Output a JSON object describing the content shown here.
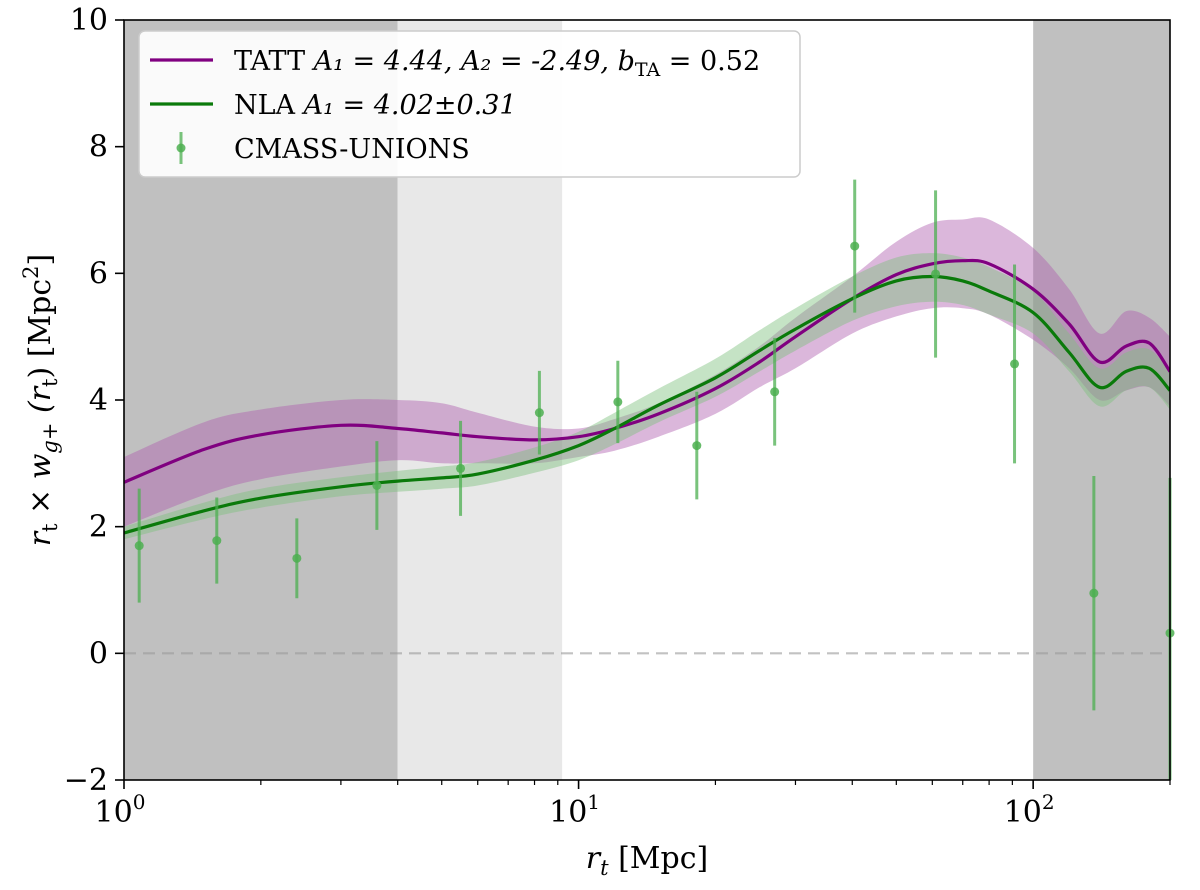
{
  "chart_data": {
    "type": "line",
    "xscale": "log",
    "xlim": [
      1,
      200
    ],
    "ylim": [
      -2,
      10
    ],
    "xlabel": {
      "sym": "r",
      "sub": "t",
      "rest": " [Mpc]"
    },
    "ylabel": {
      "a": "r",
      "a_sub": "t",
      "times": " × ",
      "b": "w",
      "b_sub": "g+",
      "arg_open": " (r",
      "arg_sub": "t",
      "arg_close": ") [Mpc",
      "sup": "2",
      "close": "]"
    },
    "x_ticks": [
      {
        "value": 1,
        "base": "10",
        "exp": "0"
      },
      {
        "value": 10,
        "base": "10",
        "exp": "1"
      },
      {
        "value": 100,
        "base": "10",
        "exp": "2"
      }
    ],
    "y_ticks": [
      {
        "value": -2,
        "label": "−2"
      },
      {
        "value": 0,
        "label": "0"
      },
      {
        "value": 2,
        "label": "2"
      },
      {
        "value": 4,
        "label": "4"
      },
      {
        "value": 6,
        "label": "6"
      },
      {
        "value": 8,
        "label": "8"
      },
      {
        "value": 10,
        "label": "10"
      }
    ],
    "shaded_regions": [
      {
        "x0": 1,
        "x1": 4,
        "color": "#c0c0c0"
      },
      {
        "x0": 4,
        "x1": 9.2,
        "color": "#e8e8e8"
      },
      {
        "x0": 100,
        "x1": 200,
        "color": "#c0c0c0"
      }
    ],
    "zero_line": {
      "y": 0,
      "color": "#999999",
      "style": "dashed"
    },
    "series": [
      {
        "name": "TATT",
        "color": "#800080",
        "band_color": "#b060b0",
        "x": [
          1,
          1.5,
          2,
          3,
          4,
          5,
          6,
          8,
          10,
          12,
          15,
          20,
          25,
          30,
          40,
          50,
          60,
          70,
          80,
          100,
          120,
          140,
          160,
          180,
          200
        ],
        "y": [
          2.7,
          3.22,
          3.45,
          3.6,
          3.55,
          3.48,
          3.42,
          3.37,
          3.42,
          3.55,
          3.78,
          4.18,
          4.6,
          5.0,
          5.6,
          5.98,
          6.15,
          6.2,
          6.15,
          5.75,
          5.2,
          4.6,
          4.85,
          4.9,
          4.45
        ],
        "lower": [
          2.0,
          2.5,
          2.75,
          2.95,
          3.05,
          3.0,
          3.0,
          3.0,
          3.1,
          3.2,
          3.42,
          3.78,
          4.2,
          4.5,
          5.05,
          5.32,
          5.45,
          5.45,
          5.35,
          4.95,
          4.5,
          4.0,
          4.15,
          4.2,
          3.9
        ],
        "upper": [
          3.1,
          3.65,
          3.85,
          4.0,
          4.0,
          3.95,
          3.8,
          3.58,
          3.55,
          3.7,
          3.95,
          4.4,
          4.85,
          5.3,
          5.95,
          6.5,
          6.8,
          6.85,
          6.85,
          6.4,
          5.75,
          5.05,
          5.4,
          5.3,
          5.0
        ]
      },
      {
        "name": "NLA",
        "color": "#0a7a0a",
        "band_color": "#7fc07f",
        "x": [
          1,
          1.5,
          2,
          3,
          4,
          5,
          6,
          8,
          10,
          12,
          15,
          20,
          25,
          30,
          40,
          50,
          60,
          70,
          80,
          100,
          120,
          140,
          160,
          180,
          200
        ],
        "y": [
          1.9,
          2.25,
          2.45,
          2.63,
          2.72,
          2.77,
          2.83,
          3.05,
          3.28,
          3.55,
          3.92,
          4.35,
          4.78,
          5.12,
          5.6,
          5.88,
          5.95,
          5.88,
          5.72,
          5.38,
          4.75,
          4.2,
          4.45,
          4.5,
          4.15
        ],
        "lower": [
          1.8,
          2.12,
          2.3,
          2.48,
          2.55,
          2.6,
          2.65,
          2.85,
          3.05,
          3.3,
          3.65,
          4.05,
          4.45,
          4.78,
          5.25,
          5.48,
          5.55,
          5.5,
          5.35,
          5.05,
          4.45,
          3.9,
          4.15,
          4.2,
          3.85
        ],
        "upper": [
          2.0,
          2.38,
          2.6,
          2.78,
          2.88,
          2.95,
          3.02,
          3.25,
          3.5,
          3.8,
          4.18,
          4.65,
          5.1,
          5.45,
          5.95,
          6.25,
          6.32,
          6.25,
          6.1,
          5.72,
          5.05,
          4.5,
          4.75,
          4.8,
          4.45
        ]
      }
    ],
    "data_points": {
      "name": "CMASS-UNIONS",
      "color": "#4caf50",
      "points": [
        {
          "x": 1.08,
          "y": 1.7,
          "err": 0.9
        },
        {
          "x": 1.6,
          "y": 1.78,
          "err": 0.68
        },
        {
          "x": 2.4,
          "y": 1.5,
          "err": 0.63
        },
        {
          "x": 3.6,
          "y": 2.65,
          "err": 0.7
        },
        {
          "x": 5.5,
          "y": 2.92,
          "err": 0.75
        },
        {
          "x": 8.2,
          "y": 3.8,
          "err": 0.66
        },
        {
          "x": 12.2,
          "y": 3.97,
          "err": 0.65
        },
        {
          "x": 18.2,
          "y": 3.28,
          "err": 0.85
        },
        {
          "x": 27,
          "y": 4.13,
          "err": 0.85
        },
        {
          "x": 40.5,
          "y": 6.43,
          "err": 1.05
        },
        {
          "x": 61,
          "y": 5.99,
          "err": 1.32
        },
        {
          "x": 91,
          "y": 4.57,
          "err": 1.57
        },
        {
          "x": 136,
          "y": 0.95,
          "err": 1.85
        },
        {
          "x": 200,
          "y": 0.32,
          "err": 2.45
        }
      ]
    },
    "legend": {
      "position": "top-left",
      "entries": [
        {
          "key": "tatt",
          "plain": "TATT ",
          "math": "A₁ = 4.44, A₂ = -2.49, b",
          "sub": "TA",
          "tail": " = 0.52"
        },
        {
          "key": "nla",
          "plain": "NLA ",
          "math": "A₁ = 4.02±0.31",
          "sub": "",
          "tail": ""
        },
        {
          "key": "data",
          "plain": "CMASS-UNIONS",
          "math": "",
          "sub": "",
          "tail": ""
        }
      ]
    }
  }
}
